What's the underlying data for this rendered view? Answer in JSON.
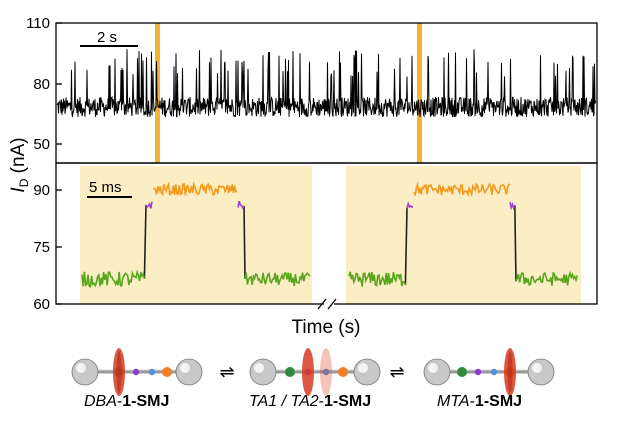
{
  "chart_data": [
    {
      "type": "line",
      "panel": "top-trace",
      "ylim": [
        40,
        110
      ],
      "yticks": [
        "110",
        "80",
        "50"
      ],
      "scalebar": "2 s",
      "baseline_level_nA": 68,
      "high_level_nA": 90,
      "highlight_color": "#F5B335",
      "trace_color": "#000000"
    },
    {
      "type": "line",
      "panel": "bottom-zoom",
      "ylim": [
        60,
        97
      ],
      "yticks": [
        "90",
        "75",
        "60"
      ],
      "scalebar": "5 ms",
      "background_color": "#FBEEC4",
      "levels_nA": {
        "low": 66.5,
        "intermediate": 86,
        "high": 90
      },
      "segment_colors": {
        "low": "#5AA51E",
        "intermediate": "#A040D0",
        "high": "#F39A1E"
      },
      "events": [
        "left",
        "right"
      ]
    }
  ],
  "axes": {
    "ylabel_main": "I",
    "ylabel_sub": "D",
    "ylabel_unit": " (nA)",
    "xlabel": "Time (s)"
  },
  "states": [
    {
      "italic": "DBA",
      "sep": "-",
      "bold": "1-SMJ"
    },
    {
      "italic": "TA1 / TA2",
      "sep": "-",
      "bold": "1-SMJ"
    },
    {
      "italic": "MTA",
      "sep": "-",
      "bold": "1-SMJ"
    }
  ],
  "arrow_symbol": "⇌"
}
